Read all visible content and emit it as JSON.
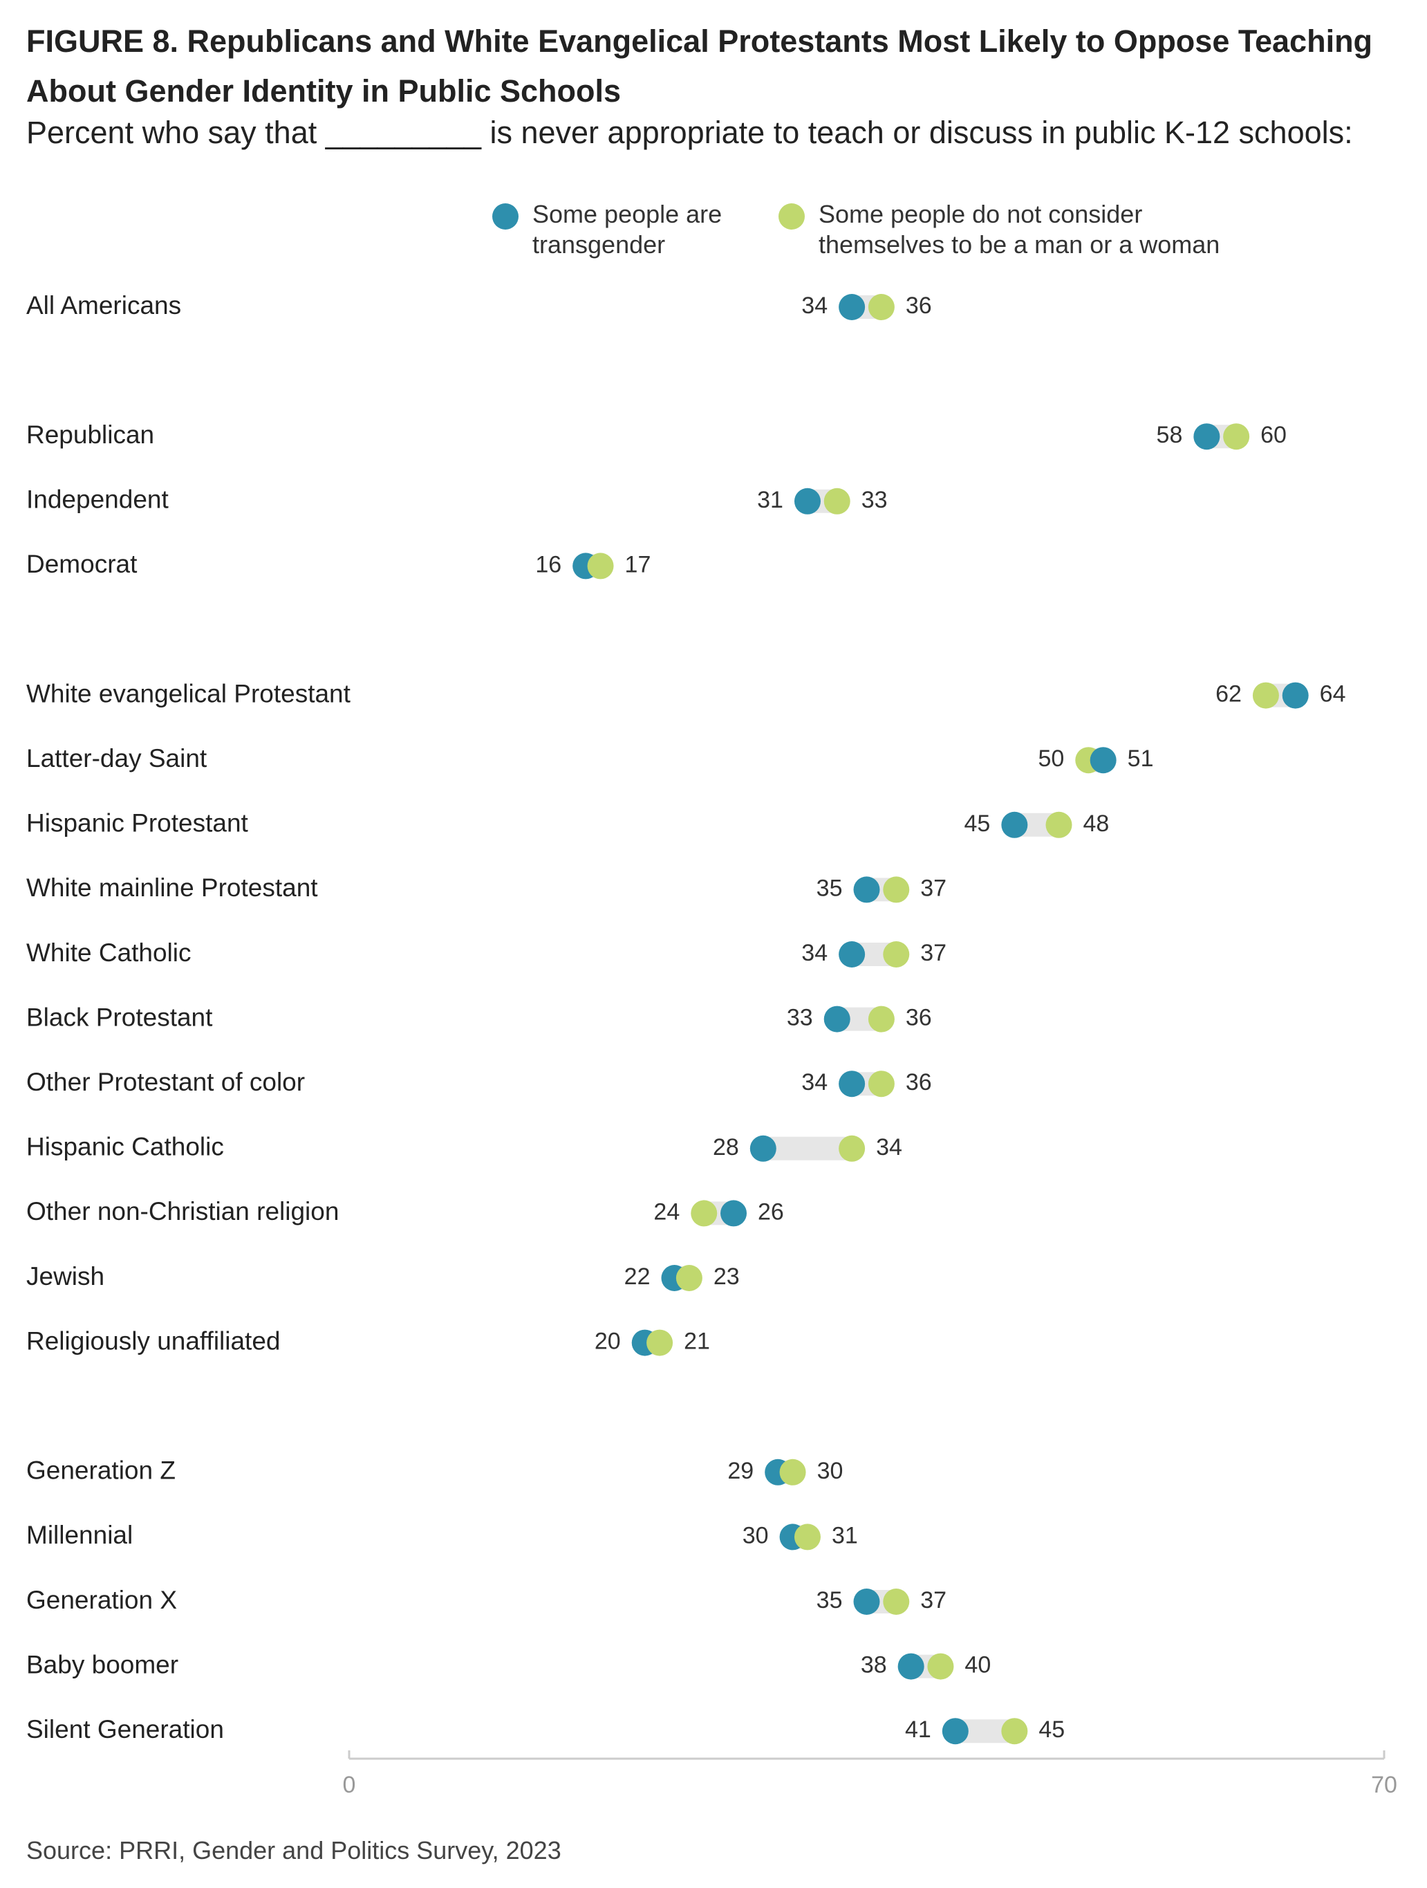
{
  "header": {
    "title": "FIGURE 8.  Republicans and White Evangelical Protestants Most Likely to Oppose Teaching About Gender Identity in Public Schools",
    "subtitle": "Percent who say that _________ is never appropriate to teach or discuss in public K-12 schools:"
  },
  "legend": {
    "a_label": "Some people are transgender",
    "b_label": "Some people do not consider themselves to be a man or a woman"
  },
  "colors": {
    "series_a": "#2e8fad",
    "series_b": "#c0d86e",
    "connector": "#e6e6e6",
    "axis": "#cccccc"
  },
  "chart_data": {
    "type": "dumbbell",
    "xlim": [
      0,
      70
    ],
    "x_ticks": [
      0,
      70
    ],
    "series": [
      {
        "name": "Some people are transgender",
        "key": "a"
      },
      {
        "name": "Some people do not consider themselves to be a man or a woman",
        "key": "b"
      }
    ],
    "groups": [
      {
        "rows": [
          {
            "label": "All Americans",
            "a": 34,
            "b": 36
          }
        ]
      },
      {
        "rows": [
          {
            "label": "Republican",
            "a": 58,
            "b": 60
          },
          {
            "label": "Independent",
            "a": 31,
            "b": 33
          },
          {
            "label": "Democrat",
            "a": 16,
            "b": 17
          }
        ]
      },
      {
        "rows": [
          {
            "label": "White evangelical Protestant",
            "a": 64,
            "b": 62
          },
          {
            "label": "Latter-day Saint",
            "a": 51,
            "b": 50
          },
          {
            "label": "Hispanic Protestant",
            "a": 45,
            "b": 48
          },
          {
            "label": "White mainline Protestant",
            "a": 35,
            "b": 37
          },
          {
            "label": "White Catholic",
            "a": 34,
            "b": 37
          },
          {
            "label": "Black Protestant",
            "a": 33,
            "b": 36
          },
          {
            "label": "Other Protestant of color",
            "a": 34,
            "b": 36
          },
          {
            "label": "Hispanic Catholic",
            "a": 28,
            "b": 34
          },
          {
            "label": "Other non-Christian religion",
            "a": 26,
            "b": 24
          },
          {
            "label": "Jewish",
            "a": 22,
            "b": 23
          },
          {
            "label": "Religiously unaffiliated",
            "a": 20,
            "b": 21
          }
        ]
      },
      {
        "rows": [
          {
            "label": "Generation Z",
            "a": 29,
            "b": 30
          },
          {
            "label": "Millennial",
            "a": 30,
            "b": 31
          },
          {
            "label": "Generation X",
            "a": 35,
            "b": 37
          },
          {
            "label": "Baby boomer",
            "a": 38,
            "b": 40
          },
          {
            "label": "Silent Generation",
            "a": 41,
            "b": 45
          }
        ]
      }
    ]
  },
  "footer": {
    "source": "Source: PRRI, Gender and Politics Survey, 2023"
  }
}
